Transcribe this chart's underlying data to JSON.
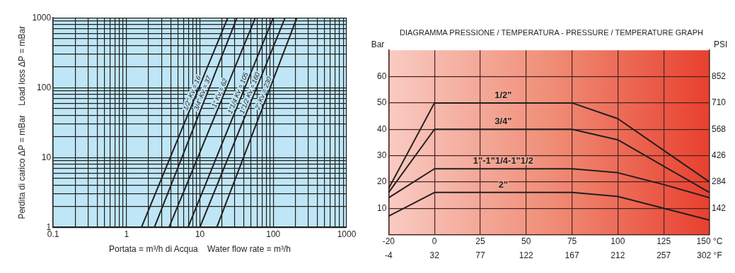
{
  "chart_data": [
    {
      "type": "line",
      "xlabel": "Portata = m³/h di Acqua    Water flow rate = m³/h",
      "ylabel": "Perdita di carico ΔP = mBar    Load loss ΔP = mBar",
      "log": "xy",
      "grid": true,
      "legend": false,
      "marker": "none",
      "line_style": "solid",
      "xlim": [
        0.1,
        1000
      ],
      "ylim": [
        1,
        1000
      ],
      "xticks": [
        0.1,
        {
          "value": 0.2,
          "label": null
        },
        {
          "value": 0.3,
          "label": null
        },
        {
          "value": 0.4,
          "label": null
        },
        {
          "value": 0.5,
          "label": null
        },
        {
          "value": 0.6,
          "label": null
        },
        {
          "value": 0.7,
          "label": null
        },
        {
          "value": 0.8,
          "label": null
        },
        {
          "value": 0.9,
          "label": null
        },
        1,
        {
          "value": 2,
          "label": null
        },
        {
          "value": 3,
          "label": null
        },
        {
          "value": 4,
          "label": null
        },
        {
          "value": 5,
          "label": null
        },
        {
          "value": 6,
          "label": null
        },
        {
          "value": 7,
          "label": null
        },
        {
          "value": 8,
          "label": null
        },
        {
          "value": 9,
          "label": null
        },
        10,
        {
          "value": 20,
          "label": null
        },
        {
          "value": 30,
          "label": null
        },
        {
          "value": 40,
          "label": null
        },
        {
          "value": 50,
          "label": null
        },
        {
          "value": 60,
          "label": null
        },
        {
          "value": 70,
          "label": null
        },
        {
          "value": 80,
          "label": null
        },
        {
          "value": 90,
          "label": null
        },
        100,
        {
          "value": 200,
          "label": null
        },
        {
          "value": 300,
          "label": null
        },
        {
          "value": 400,
          "label": null
        },
        {
          "value": 500,
          "label": null
        },
        {
          "value": 600,
          "label": null
        },
        {
          "value": 700,
          "label": null
        },
        {
          "value": 800,
          "label": null
        },
        {
          "value": 900,
          "label": null
        },
        1000
      ],
      "yticks": [
        1,
        {
          "value": 2,
          "label": null
        },
        {
          "value": 3,
          "label": null
        },
        {
          "value": 4,
          "label": null
        },
        {
          "value": 5,
          "label": null
        },
        {
          "value": 6,
          "label": null
        },
        {
          "value": 7,
          "label": null
        },
        {
          "value": 8,
          "label": null
        },
        {
          "value": 9,
          "label": null
        },
        10,
        {
          "value": 20,
          "label": null
        },
        {
          "value": 30,
          "label": null
        },
        {
          "value": 40,
          "label": null
        },
        {
          "value": 50,
          "label": null
        },
        {
          "value": 60,
          "label": null
        },
        {
          "value": 70,
          "label": null
        },
        {
          "value": 80,
          "label": null
        },
        {
          "value": 90,
          "label": null
        },
        100,
        {
          "value": 200,
          "label": null
        },
        {
          "value": 300,
          "label": null
        },
        {
          "value": 400,
          "label": null
        },
        {
          "value": 500,
          "label": null
        },
        {
          "value": 600,
          "label": null
        },
        {
          "value": 700,
          "label": null
        },
        {
          "value": 800,
          "label": null
        },
        {
          "value": 900,
          "label": null
        },
        1000
      ],
      "series": [
        {
          "name": "1/2\" Kv = 16",
          "color": "#231f20",
          "x": [
            1.6,
            24
          ],
          "values": [
            1,
            1000
          ]
        },
        {
          "name": "3/4\" Kv = 37",
          "color": "#231f20",
          "x": [
            2.4,
            32
          ],
          "values": [
            1,
            1000
          ]
        },
        {
          "name": "1\" Kv = 62",
          "color": "#231f20",
          "x": [
            3.8,
            57
          ],
          "values": [
            1,
            1000
          ]
        },
        {
          "name": "1\"1/4 Kv = 105",
          "color": "#231f20",
          "x": [
            6.9,
            100
          ],
          "values": [
            1,
            1000
          ]
        },
        {
          "name": "1\"1/2 Kv = 160",
          "color": "#231f20",
          "x": [
            10,
            145
          ],
          "values": [
            1,
            1000
          ]
        },
        {
          "name": "2\" Kv = 230",
          "color": "#231f20",
          "x": [
            17,
            210
          ],
          "values": [
            1,
            1000
          ]
        }
      ]
    },
    {
      "type": "line",
      "title": "DIAGRAMMA PRESSIONE / TEMPERATURA - PRESSURE / TEMPERATURE GRAPH",
      "ylabel": "Bar",
      "y2label": "PSI",
      "grid": true,
      "legend": false,
      "marker": "none",
      "line_style": "solid",
      "categories": [
        "-20",
        "0",
        "25",
        "50",
        "75",
        "100",
        "125",
        "150 °C"
      ],
      "ylim": [
        0,
        70
      ],
      "yticks": [
        10,
        20,
        30,
        40,
        50,
        60
      ],
      "y2lim": [
        0,
        994
      ],
      "y2ticks": [
        142,
        284,
        426,
        568,
        710,
        852
      ],
      "series": [
        {
          "name": "1/2\"",
          "color": "#231f20",
          "values": [
            17.5,
            50,
            50,
            50,
            50,
            44,
            32,
            20
          ]
        },
        {
          "name": "3/4\"",
          "color": "#231f20",
          "values": [
            16,
            40,
            40,
            40,
            40,
            36,
            26,
            16
          ]
        },
        {
          "name": "1\"-1\"1/4-1\"1/2",
          "color": "#231f20",
          "values": [
            14,
            25,
            25,
            25,
            25,
            23.5,
            19,
            14
          ]
        },
        {
          "name": "2\"",
          "color": "#231f20",
          "values": [
            7,
            16,
            16,
            16,
            16,
            14.5,
            10,
            5.5
          ]
        }
      ],
      "annotations": [
        "-4",
        "32",
        "77",
        "122",
        "167",
        "212",
        "257",
        "302 °F"
      ]
    }
  ]
}
